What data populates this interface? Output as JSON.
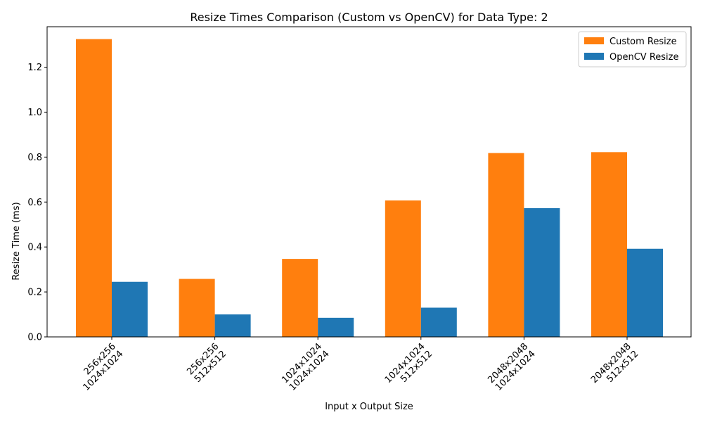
{
  "chart_data": {
    "type": "bar",
    "title": "Resize Times Comparison (Custom vs OpenCV) for Data Type: 2",
    "xlabel": "Input x Output Size",
    "ylabel": "Resize Time (ms)",
    "categories": [
      [
        "256x256",
        "1024x1024"
      ],
      [
        "256x256",
        "512x512"
      ],
      [
        "1024x1024",
        "1024x1024"
      ],
      [
        "1024x1024",
        "512x512"
      ],
      [
        "2048x2048",
        "1024x1024"
      ],
      [
        "2048x2048",
        "512x512"
      ]
    ],
    "series": [
      {
        "name": "Custom Resize",
        "color": "#ff7f0e",
        "values": [
          1.325,
          0.258,
          0.347,
          0.607,
          0.818,
          0.822
        ]
      },
      {
        "name": "OpenCV Resize",
        "color": "#1f77b4",
        "values": [
          0.245,
          0.1,
          0.085,
          0.13,
          0.573,
          0.392
        ]
      }
    ],
    "ylim": [
      0,
      1.38
    ],
    "yticks": [
      "0.0",
      "0.2",
      "0.4",
      "0.6",
      "0.8",
      "1.0",
      "1.2"
    ],
    "legend_position": "top-right",
    "grid": false
  }
}
